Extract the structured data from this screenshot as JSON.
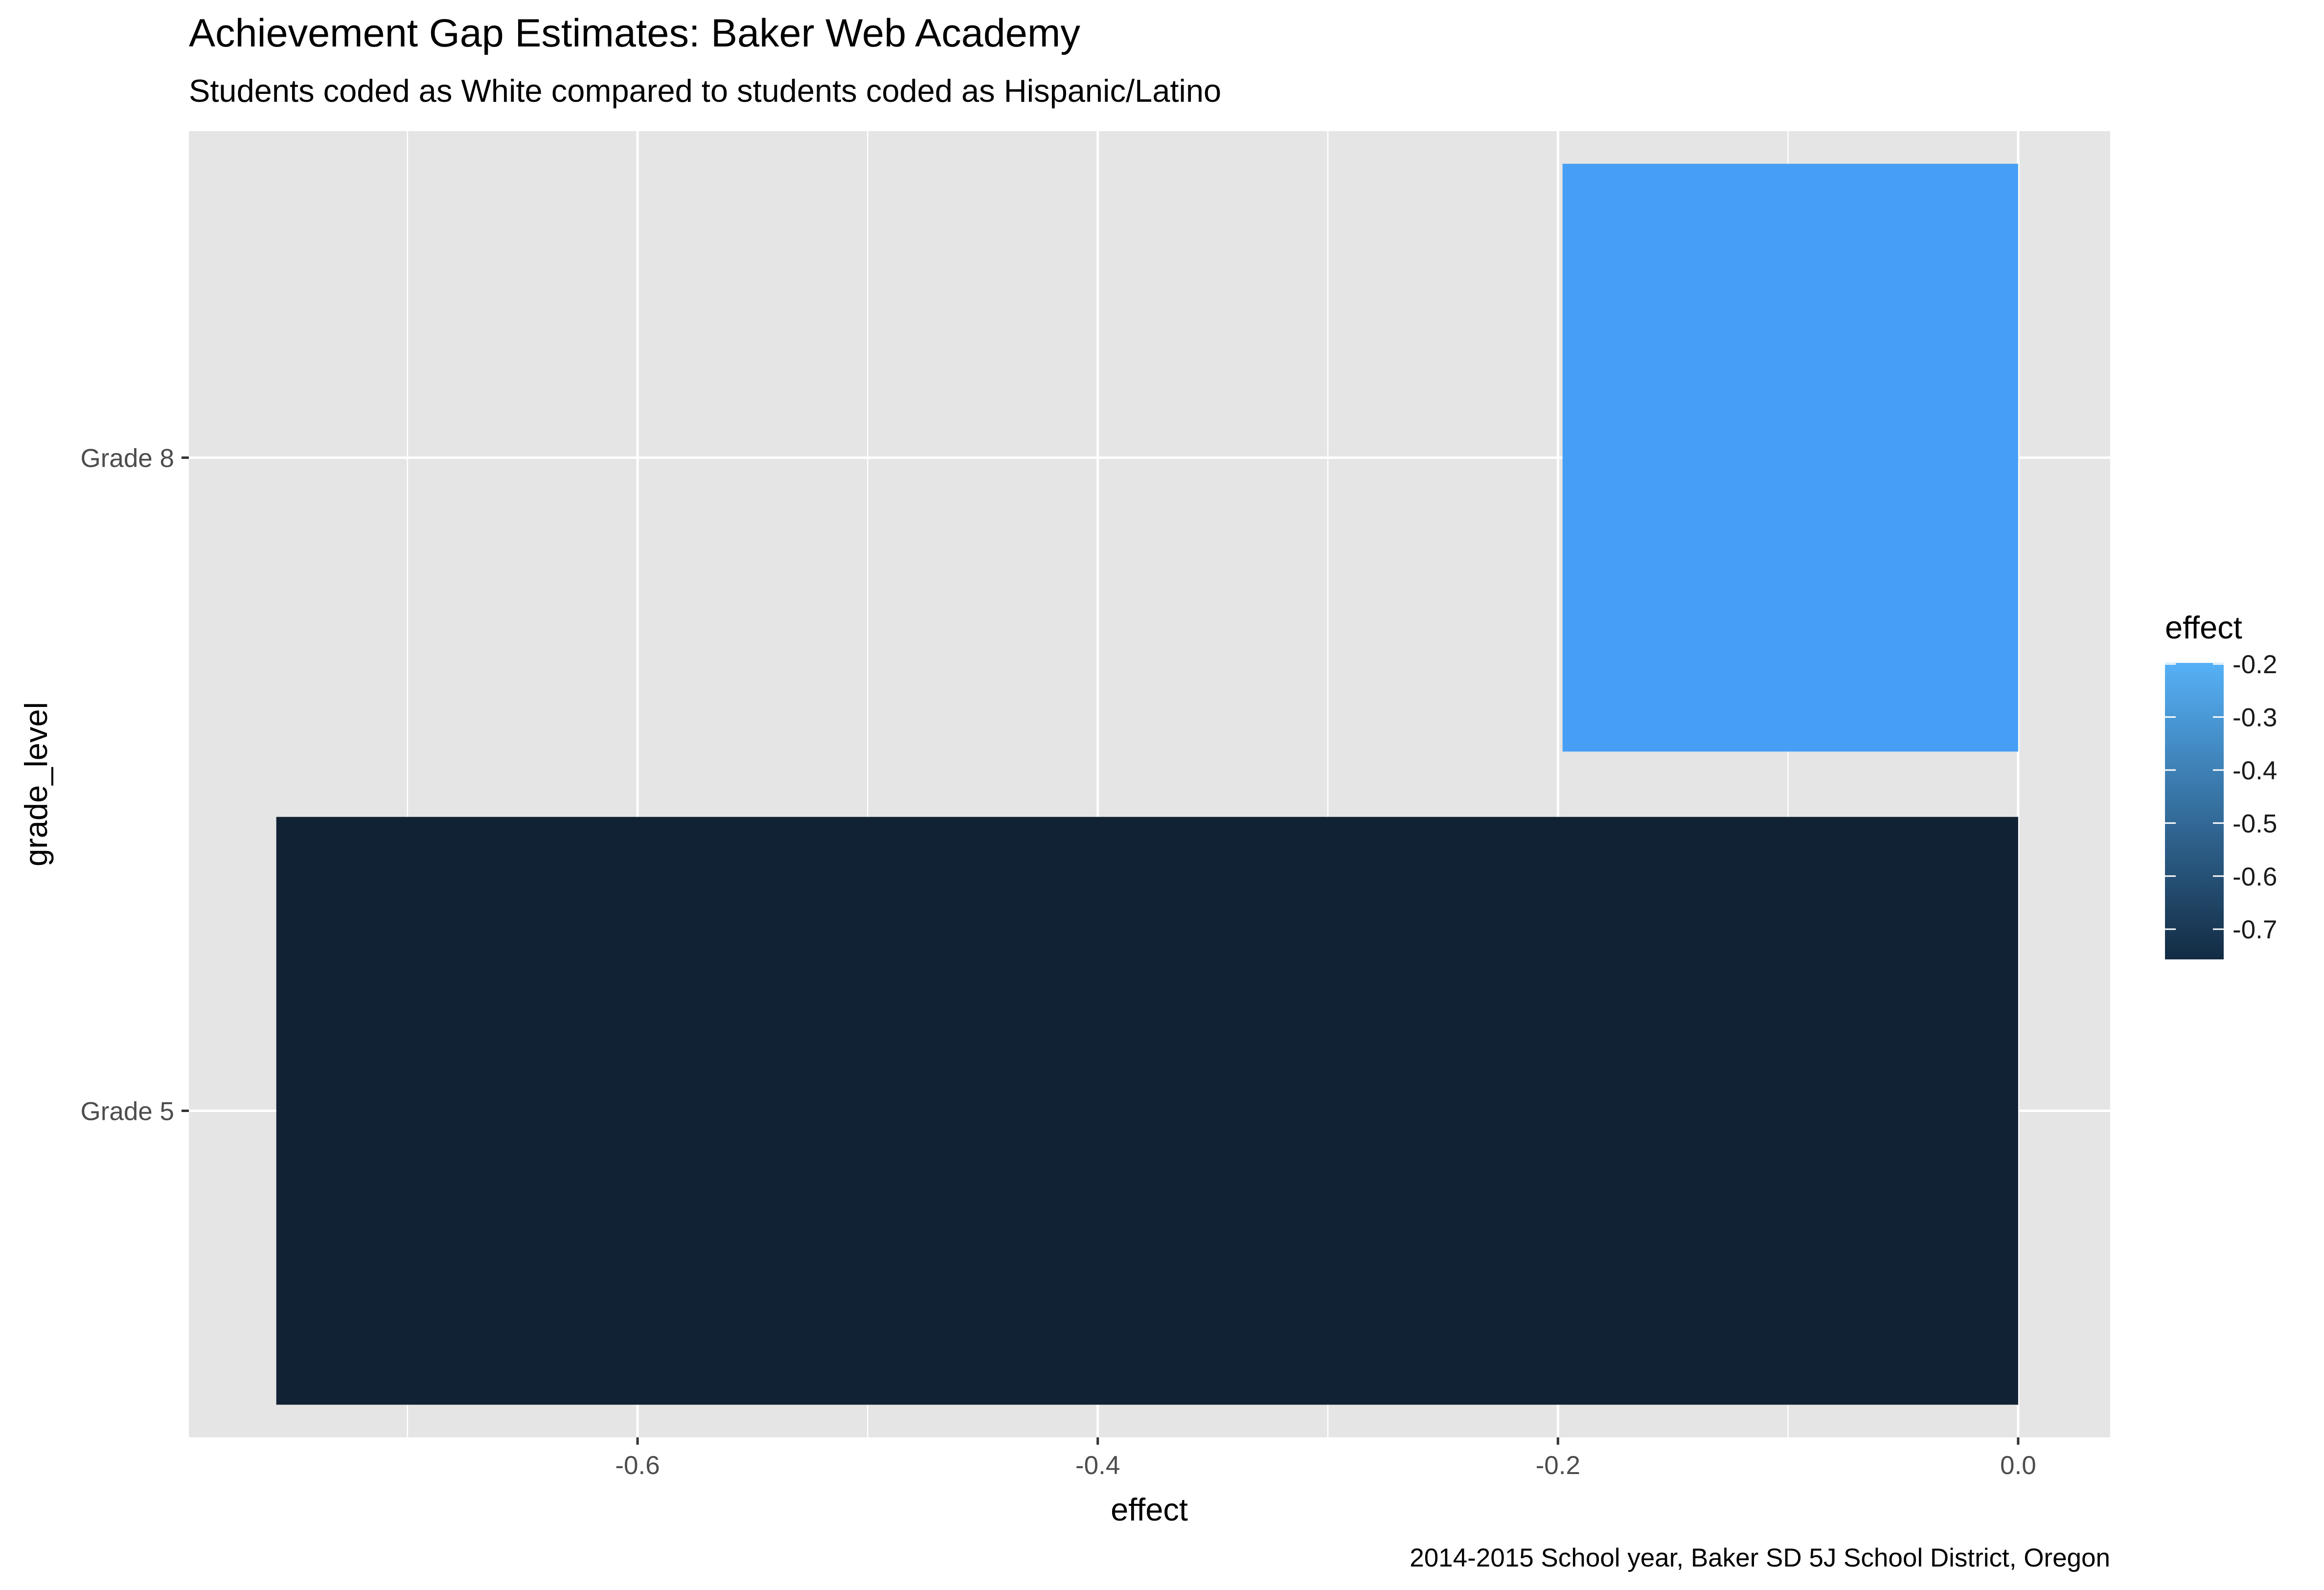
{
  "chart_data": {
    "type": "bar",
    "orientation": "horizontal",
    "title": "Achievement Gap Estimates: Baker Web Academy",
    "subtitle": "Students coded as White compared to students coded as Hispanic/Latino",
    "caption": "2014-2015 School year, Baker SD 5J School District, Oregon",
    "xlabel": "effect",
    "ylabel": "grade_level",
    "categories": [
      "Grade 5",
      "Grade 8"
    ],
    "values": [
      -0.757,
      -0.198
    ],
    "xlim": [
      -0.795,
      0.04
    ],
    "x_ticks": [
      -0.6,
      -0.4,
      -0.2,
      0.0
    ],
    "x_tick_labels": [
      "-0.6",
      "-0.4",
      "-0.2",
      "0.0"
    ],
    "grid": true,
    "legend": {
      "title": "effect",
      "position": "right",
      "type": "colorbar",
      "range": [
        -0.757,
        -0.198
      ],
      "ticks": [
        -0.2,
        -0.3,
        -0.4,
        -0.5,
        -0.6,
        -0.7
      ],
      "tick_labels": [
        "-0.2",
        "-0.3",
        "-0.4",
        "-0.5",
        "-0.6",
        "-0.7"
      ],
      "color_low": "#132B43",
      "color_high": "#56B1F7"
    },
    "bar_colors": [
      "#112234",
      "#469ff5"
    ],
    "panel_background": "#e5e5e5",
    "grid_color": "#ffffff"
  }
}
